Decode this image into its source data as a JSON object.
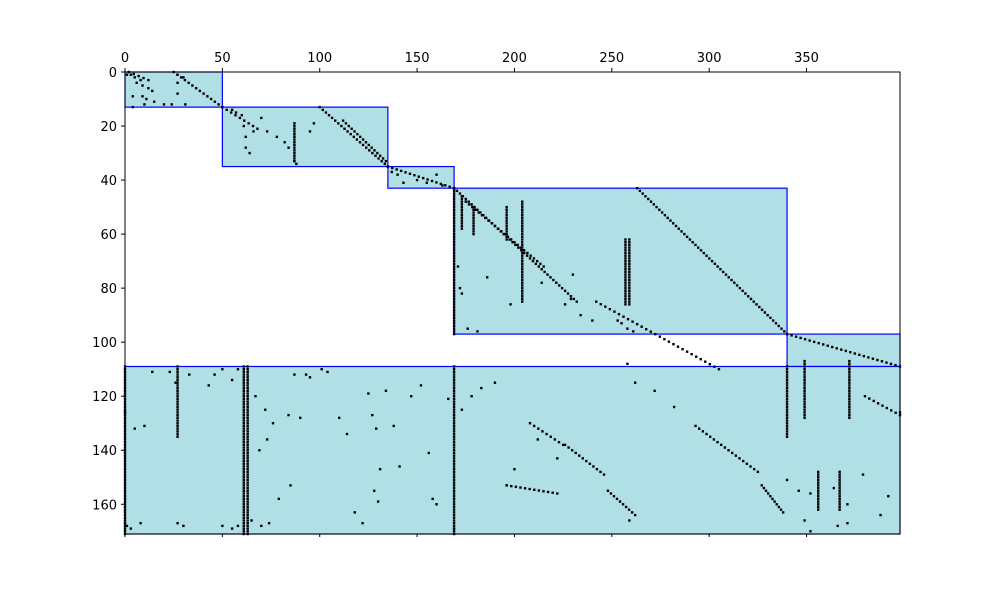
{
  "chart_data": {
    "type": "heatmap",
    "subtype": "sparse-matrix-spy",
    "title": "",
    "xlabel": "",
    "ylabel": "",
    "xlim": [
      0,
      398
    ],
    "ylim": [
      171,
      0
    ],
    "x_axis_position": "top",
    "grid": false,
    "x_ticks": [
      0,
      50,
      100,
      150,
      200,
      250,
      300,
      350
    ],
    "y_ticks": [
      0,
      20,
      40,
      60,
      80,
      100,
      120,
      140,
      160
    ],
    "colors": {
      "block_fill": "#b0e0e6",
      "block_edge": "#0000ff",
      "marker": "#000000"
    },
    "blocks": [
      {
        "cols": [
          0,
          50
        ],
        "rows": [
          0,
          13
        ]
      },
      {
        "cols": [
          50,
          135
        ],
        "rows": [
          13,
          35
        ]
      },
      {
        "cols": [
          135,
          169
        ],
        "rows": [
          35,
          43
        ]
      },
      {
        "cols": [
          169,
          340
        ],
        "rows": [
          43,
          97
        ]
      },
      {
        "cols": [
          340,
          398
        ],
        "rows": [
          97,
          109
        ]
      },
      {
        "cols": [
          0,
          398
        ],
        "rows": [
          109,
          171
        ]
      }
    ],
    "diagonal_runs": [
      {
        "from": [
          2,
          0
        ],
        "to": [
          12,
          3
        ]
      },
      {
        "from": [
          25,
          0
        ],
        "to": [
          50,
          13
        ]
      },
      {
        "from": [
          50,
          13
        ],
        "to": [
          68,
          21
        ]
      },
      {
        "from": [
          100,
          13
        ],
        "to": [
          135,
          35
        ]
      },
      {
        "from": [
          112,
          18
        ],
        "to": [
          134,
          33
        ]
      },
      {
        "from": [
          135,
          35
        ],
        "to": [
          169,
          43
        ]
      },
      {
        "from": [
          169,
          43
        ],
        "to": [
          232,
          85
        ]
      },
      {
        "from": [
          175,
          48
        ],
        "to": [
          215,
          72
        ]
      },
      {
        "from": [
          263,
          43
        ],
        "to": [
          340,
          97
        ]
      },
      {
        "from": [
          242,
          85
        ],
        "to": [
          305,
          110
        ]
      },
      {
        "from": [
          340,
          97
        ],
        "to": [
          398,
          109
        ]
      },
      {
        "from": [
          208,
          130
        ],
        "to": [
          225,
          138
        ]
      },
      {
        "from": [
          226,
          138
        ],
        "to": [
          246,
          149
        ]
      },
      {
        "from": [
          293,
          131
        ],
        "to": [
          325,
          148
        ]
      },
      {
        "from": [
          248,
          155
        ],
        "to": [
          262,
          164
        ]
      },
      {
        "from": [
          327,
          153
        ],
        "to": [
          338,
          163
        ]
      },
      {
        "from": [
          380,
          120
        ],
        "to": [
          398,
          127
        ]
      },
      {
        "from": [
          196,
          153
        ],
        "to": [
          222,
          156
        ]
      }
    ],
    "vertical_runs": [
      {
        "col": 169,
        "rows": [
          43,
          97
        ]
      },
      {
        "col": 169,
        "rows": [
          109,
          171
        ]
      },
      {
        "col": 61,
        "rows": [
          109,
          171
        ]
      },
      {
        "col": 63,
        "rows": [
          109,
          171
        ]
      },
      {
        "col": 0,
        "rows": [
          109,
          171
        ]
      },
      {
        "col": 179,
        "rows": [
          50,
          60
        ]
      },
      {
        "col": 196,
        "rows": [
          50,
          62
        ]
      },
      {
        "col": 204,
        "rows": [
          48,
          85
        ]
      },
      {
        "col": 173,
        "rows": [
          46,
          58
        ]
      },
      {
        "col": 257,
        "rows": [
          62,
          86
        ]
      },
      {
        "col": 259,
        "rows": [
          62,
          86
        ]
      },
      {
        "col": 87,
        "rows": [
          19,
          33
        ]
      },
      {
        "col": 27,
        "rows": [
          109,
          135
        ]
      },
      {
        "col": 340,
        "rows": [
          109,
          135
        ]
      },
      {
        "col": 349,
        "rows": [
          107,
          128
        ]
      },
      {
        "col": 372,
        "rows": [
          107,
          128
        ]
      },
      {
        "col": 356,
        "rows": [
          148,
          162
        ]
      },
      {
        "col": 367,
        "rows": [
          148,
          162
        ]
      }
    ],
    "scattered_points": [
      [
        1,
        1
      ],
      [
        3,
        1
      ],
      [
        5,
        2
      ],
      [
        8,
        3
      ],
      [
        6,
        4
      ],
      [
        9,
        5
      ],
      [
        12,
        6
      ],
      [
        14,
        7
      ],
      [
        9,
        9
      ],
      [
        11,
        10
      ],
      [
        15,
        11
      ],
      [
        20,
        12
      ],
      [
        27,
        1
      ],
      [
        27,
        4
      ],
      [
        27,
        8
      ],
      [
        30,
        2
      ],
      [
        31,
        12
      ],
      [
        24,
        12
      ],
      [
        4,
        9
      ],
      [
        4,
        13
      ],
      [
        10,
        12
      ],
      [
        55,
        14
      ],
      [
        57,
        15
      ],
      [
        60,
        16
      ],
      [
        61,
        20
      ],
      [
        62,
        24
      ],
      [
        62,
        28
      ],
      [
        64,
        30
      ],
      [
        66,
        22
      ],
      [
        70,
        17
      ],
      [
        73,
        22
      ],
      [
        78,
        24
      ],
      [
        82,
        26
      ],
      [
        84,
        28
      ],
      [
        87,
        33
      ],
      [
        88,
        34
      ],
      [
        95,
        22
      ],
      [
        97,
        19
      ],
      [
        137,
        37
      ],
      [
        140,
        38
      ],
      [
        143,
        41
      ],
      [
        150,
        40
      ],
      [
        155,
        41
      ],
      [
        160,
        38
      ],
      [
        163,
        42
      ],
      [
        171,
        72
      ],
      [
        172,
        80
      ],
      [
        173,
        82
      ],
      [
        176,
        95
      ],
      [
        181,
        96
      ],
      [
        186,
        76
      ],
      [
        198,
        86
      ],
      [
        214,
        78
      ],
      [
        230,
        75
      ],
      [
        226,
        86
      ],
      [
        229,
        84
      ],
      [
        234,
        90
      ],
      [
        240,
        92
      ],
      [
        253,
        92
      ],
      [
        255,
        93
      ],
      [
        258,
        95
      ],
      [
        261,
        96
      ],
      [
        0,
        126
      ],
      [
        5,
        132
      ],
      [
        10,
        131
      ],
      [
        14,
        111
      ],
      [
        23,
        111
      ],
      [
        26,
        115
      ],
      [
        33,
        112
      ],
      [
        43,
        116
      ],
      [
        46,
        112
      ],
      [
        50,
        110
      ],
      [
        55,
        114
      ],
      [
        58,
        110
      ],
      [
        67,
        120
      ],
      [
        69,
        140
      ],
      [
        72,
        125
      ],
      [
        73,
        136
      ],
      [
        76,
        130
      ],
      [
        79,
        158
      ],
      [
        84,
        127
      ],
      [
        85,
        153
      ],
      [
        87,
        112
      ],
      [
        90,
        128
      ],
      [
        93,
        112
      ],
      [
        95,
        113
      ],
      [
        101,
        110
      ],
      [
        104,
        111
      ],
      [
        110,
        128
      ],
      [
        114,
        134
      ],
      [
        118,
        163
      ],
      [
        122,
        167
      ],
      [
        125,
        119
      ],
      [
        127,
        127
      ],
      [
        129,
        132
      ],
      [
        131,
        147
      ],
      [
        134,
        118
      ],
      [
        138,
        131
      ],
      [
        141,
        146
      ],
      [
        147,
        120
      ],
      [
        152,
        116
      ],
      [
        156,
        141
      ],
      [
        158,
        158
      ],
      [
        160,
        160
      ],
      [
        166,
        121
      ],
      [
        173,
        125
      ],
      [
        178,
        120
      ],
      [
        183,
        117
      ],
      [
        190,
        115
      ],
      [
        196,
        153
      ],
      [
        200,
        147
      ],
      [
        212,
        136
      ],
      [
        222,
        143
      ],
      [
        258,
        108
      ],
      [
        262,
        115
      ],
      [
        272,
        118
      ],
      [
        282,
        124
      ],
      [
        340,
        151
      ],
      [
        346,
        155
      ],
      [
        352,
        156
      ],
      [
        364,
        154
      ],
      [
        371,
        160
      ],
      [
        379,
        149
      ],
      [
        388,
        164
      ],
      [
        392,
        157
      ],
      [
        366,
        168
      ],
      [
        1,
        168
      ],
      [
        3,
        169
      ],
      [
        8,
        167
      ],
      [
        27,
        167
      ],
      [
        30,
        168
      ],
      [
        50,
        168
      ],
      [
        55,
        169
      ],
      [
        58,
        168
      ],
      [
        65,
        166
      ],
      [
        70,
        168
      ],
      [
        74,
        167
      ],
      [
        169,
        169
      ],
      [
        349,
        166
      ],
      [
        352,
        170
      ],
      [
        371,
        167
      ],
      [
        398,
        126
      ],
      [
        259,
        166
      ],
      [
        130,
        159
      ],
      [
        128,
        155
      ]
    ]
  }
}
